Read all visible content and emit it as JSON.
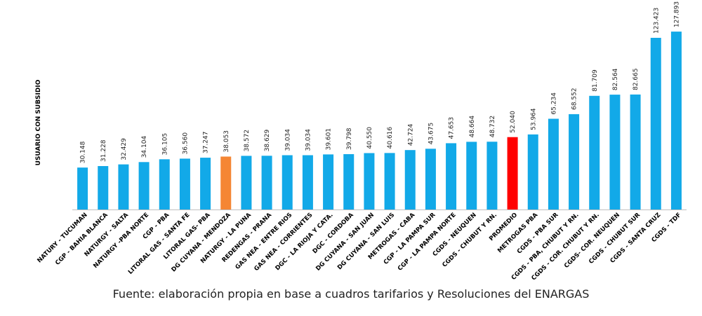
{
  "caption": "Fuente: elaboración propia en base a cuadros tarifarios y Resoluciones del ENARGAS",
  "colors": {
    "default": "#12a9e8",
    "highlight": "#f58634",
    "average": "#ff0000",
    "axis": "#bfbfbf"
  },
  "chart_data": {
    "type": "bar",
    "title": "",
    "xlabel": "",
    "ylabel": "USUARIO CON SUBSIDIO",
    "ylim": [
      0,
      135000
    ],
    "grid": false,
    "categories": [
      "NATURY - TUCUMAN",
      "CGP - BAHIA BLANCA",
      "NATURGY - SALTA",
      "NATURGY -PBA NORTE",
      "CGP - PBA",
      "LITORAL GAS - SANTA FE",
      "LITORAL GAS- PBA",
      "DG CUYANA - MENDOZA",
      "NATURGY - LA PUNA",
      "REDENGAS - PRANA",
      "GAS NEA - ENTRE RIOS",
      "GAS NEA - CORRIENTES",
      "DGC - LA RIOJA Y CATA.",
      "DGC - CORDOBA",
      "DG CUYANA - SAN JUAN",
      "DG CUYANA - SAN LUIS",
      "METROGAS - CABA",
      "CGP - LA PAMPA SUR",
      "CGP - LA PAMPA NORTE",
      "CGDS - NEUQUEN",
      "CGDS - CHUBUT Y RN.",
      "PROMEDIO",
      "METROGAS PBA",
      "CGDS - PBA SUR",
      "CGDS - PBA, CHUBUT Y RN.",
      "CGDS - COR. CHUBUT Y RN.",
      "CGDS- COR. NEUQUEN",
      "CGDS - CHUBUT SUR",
      "CGDS - SANTA CRUZ",
      "CGDS - TDF"
    ],
    "values": [
      30148,
      31228,
      32429,
      34104,
      36105,
      36560,
      37247,
      38053,
      38572,
      38629,
      39034,
      39034,
      39601,
      39798,
      40550,
      40616,
      42724,
      43675,
      47653,
      48664,
      48732,
      52040,
      53964,
      65234,
      68552,
      81709,
      82564,
      82665,
      123423,
      127893
    ],
    "data_labels": [
      "30.148",
      "31.228",
      "32.429",
      "34.104",
      "36.105",
      "36.560",
      "37.247",
      "38.053",
      "38.572",
      "38.629",
      "39.034",
      "39.034",
      "39.601",
      "39.798",
      "40.550",
      "40.616",
      "42.724",
      "43.675",
      "47.653",
      "48.664",
      "48.732",
      "52.040",
      "53.964",
      "65.234",
      "68.552",
      "81.709",
      "82.564",
      "82.665",
      "123.423",
      "127.893"
    ],
    "highlight": {
      "DG CUYANA - MENDOZA": "highlight",
      "PROMEDIO": "average"
    }
  }
}
